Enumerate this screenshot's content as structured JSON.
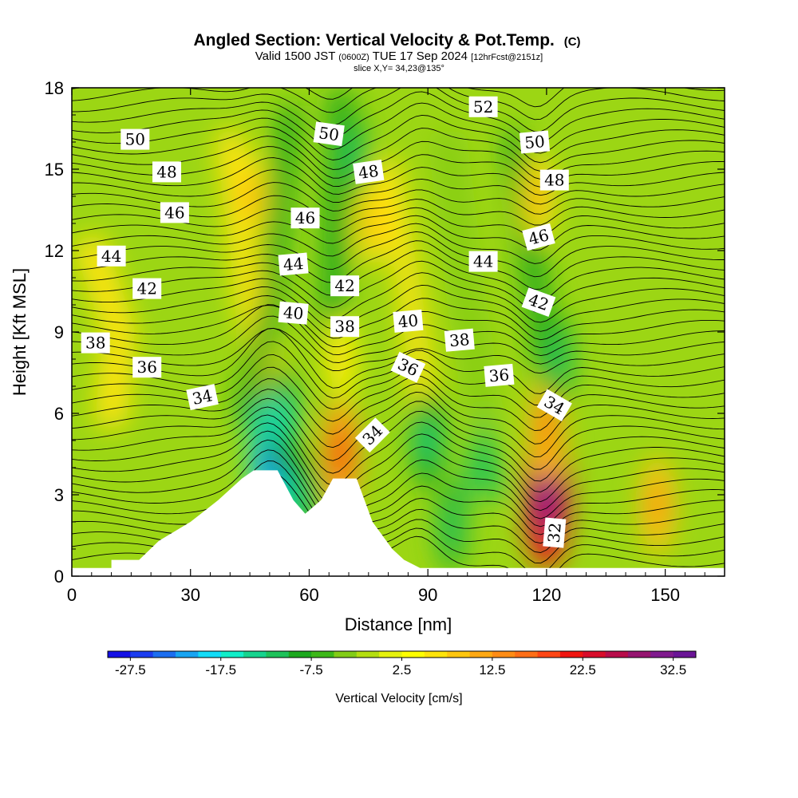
{
  "chart_data": {
    "type": "heatmap",
    "title": "Angled Section: Vertical Velocity & Pot.Temp.",
    "title_mark": "(C)",
    "subtitle": {
      "part1": "Valid 1500 JST",
      "part2": "(0600Z)",
      "part3": "TUE 17 Sep 2024",
      "part4": "[12hrFcst@2151z]"
    },
    "slice_label": "slice X,Y= 34,23@135°",
    "xlabel": "Distance [nm]",
    "ylabel": "Height [Kft MSL]",
    "xlim": [
      0,
      165
    ],
    "ylim": [
      0,
      18
    ],
    "xticks": [
      0,
      30,
      60,
      90,
      120,
      150
    ],
    "yticks": [
      0,
      3,
      6,
      9,
      12,
      15,
      18
    ],
    "colorbar": {
      "label": "Vertical Velocity [cm/s]",
      "tick_values": [
        -27.5,
        -17.5,
        -7.5,
        2.5,
        12.5,
        22.5,
        32.5
      ],
      "tick_labels": [
        "-27.5",
        "-17.5",
        "-7.5",
        "2.5",
        "12.5",
        "22.5",
        "32.5"
      ],
      "min": -30,
      "max": 35,
      "step": 2.5,
      "colors": [
        "#1410e6",
        "#1b3cf0",
        "#1c6ef0",
        "#18a4f2",
        "#12dcf8",
        "#10eec8",
        "#16d48e",
        "#1ec25a",
        "#1ca81e",
        "#3cb818",
        "#82cc16",
        "#b4de10",
        "#e6f20c",
        "#ffff00",
        "#ffe40a",
        "#ffc60e",
        "#ffa812",
        "#ff8c14",
        "#ff6e16",
        "#ff4614",
        "#f01410",
        "#d80c2a",
        "#b80c4a",
        "#961470",
        "#801a8e",
        "#6a1496"
      ]
    },
    "vertical_velocity_cores": [
      {
        "x": 120,
        "height": 3.0,
        "value": 34
      },
      {
        "x": 120,
        "height": 5.5,
        "value": 16
      },
      {
        "x": 68,
        "height": 4.5,
        "value": 20
      },
      {
        "x": 68,
        "height": 8.0,
        "value": 8
      },
      {
        "x": 148,
        "height": 2.6,
        "value": 14
      },
      {
        "x": 50,
        "height": 4.3,
        "value": -26
      },
      {
        "x": 53,
        "height": 5.8,
        "value": -16
      },
      {
        "x": 58,
        "height": 2.8,
        "value": -14
      },
      {
        "x": 96,
        "height": 1.8,
        "value": -12
      },
      {
        "x": 123,
        "height": 8.0,
        "value": -12
      },
      {
        "x": 90,
        "height": 5.0,
        "value": -14
      },
      {
        "x": 71,
        "height": 15.5,
        "value": -12
      },
      {
        "x": 45,
        "height": 14.0,
        "value": 10
      },
      {
        "x": 76,
        "height": 13.0,
        "value": 9
      },
      {
        "x": 118,
        "height": 14.0,
        "value": 10
      }
    ],
    "terrain_height": [
      {
        "x": 0,
        "height": 0.3
      },
      {
        "x": 10,
        "height": 0.3
      },
      {
        "x": 10,
        "height": 0.6
      },
      {
        "x": 17,
        "height": 0.6
      },
      {
        "x": 22,
        "height": 1.3
      },
      {
        "x": 30,
        "height": 2.0
      },
      {
        "x": 37,
        "height": 2.8
      },
      {
        "x": 43,
        "height": 3.6
      },
      {
        "x": 46,
        "height": 3.9
      },
      {
        "x": 52,
        "height": 3.9
      },
      {
        "x": 56,
        "height": 2.8
      },
      {
        "x": 59,
        "height": 2.3
      },
      {
        "x": 63,
        "height": 2.8
      },
      {
        "x": 66,
        "height": 3.6
      },
      {
        "x": 72,
        "height": 3.6
      },
      {
        "x": 76,
        "height": 2.0
      },
      {
        "x": 81,
        "height": 1.0
      },
      {
        "x": 84,
        "height": 0.6
      },
      {
        "x": 88,
        "height": 0.3
      },
      {
        "x": 165,
        "height": 0.3
      }
    ],
    "theta_contour_labels": [
      {
        "text": "50",
        "x": 16,
        "height": 16.1,
        "angle": 0
      },
      {
        "text": "48",
        "x": 24,
        "height": 14.9,
        "angle": 0
      },
      {
        "text": "46",
        "x": 26,
        "height": 13.4,
        "angle": 0
      },
      {
        "text": "44",
        "x": 10,
        "height": 11.8,
        "angle": 0
      },
      {
        "text": "42",
        "x": 19,
        "height": 10.6,
        "angle": 0
      },
      {
        "text": "38",
        "x": 6,
        "height": 8.6,
        "angle": 0
      },
      {
        "text": "36",
        "x": 19,
        "height": 7.7,
        "angle": 0
      },
      {
        "text": "34",
        "x": 33,
        "height": 6.6,
        "angle": -12
      },
      {
        "text": "50",
        "x": 65,
        "height": 16.3,
        "angle": 8
      },
      {
        "text": "48",
        "x": 75,
        "height": 14.9,
        "angle": -8
      },
      {
        "text": "46",
        "x": 59,
        "height": 13.2,
        "angle": 0
      },
      {
        "text": "44",
        "x": 56,
        "height": 11.5,
        "angle": -5
      },
      {
        "text": "42",
        "x": 69,
        "height": 10.7,
        "angle": 0
      },
      {
        "text": "40",
        "x": 56,
        "height": 9.7,
        "angle": 5
      },
      {
        "text": "38",
        "x": 69,
        "height": 9.2,
        "angle": 0
      },
      {
        "text": "40",
        "x": 85,
        "height": 9.4,
        "angle": -5
      },
      {
        "text": "34",
        "x": 76,
        "height": 5.2,
        "angle": -45
      },
      {
        "text": "36",
        "x": 85,
        "height": 7.7,
        "angle": 25
      },
      {
        "text": "38",
        "x": 98,
        "height": 8.7,
        "angle": -5
      },
      {
        "text": "52",
        "x": 104,
        "height": 17.3,
        "angle": 0
      },
      {
        "text": "44",
        "x": 104,
        "height": 11.6,
        "angle": 0
      },
      {
        "text": "36",
        "x": 108,
        "height": 7.4,
        "angle": -5
      },
      {
        "text": "50",
        "x": 117,
        "height": 16.0,
        "angle": -5
      },
      {
        "text": "48",
        "x": 122,
        "height": 14.6,
        "angle": 0
      },
      {
        "text": "46",
        "x": 118,
        "height": 12.5,
        "angle": -15
      },
      {
        "text": "42",
        "x": 118,
        "height": 10.1,
        "angle": 20
      },
      {
        "text": "34",
        "x": 122,
        "height": 6.3,
        "angle": 30
      },
      {
        "text": "32",
        "x": 122,
        "height": 1.6,
        "angle": -85
      }
    ],
    "grid": false,
    "legend": "colorbar-bottom"
  }
}
